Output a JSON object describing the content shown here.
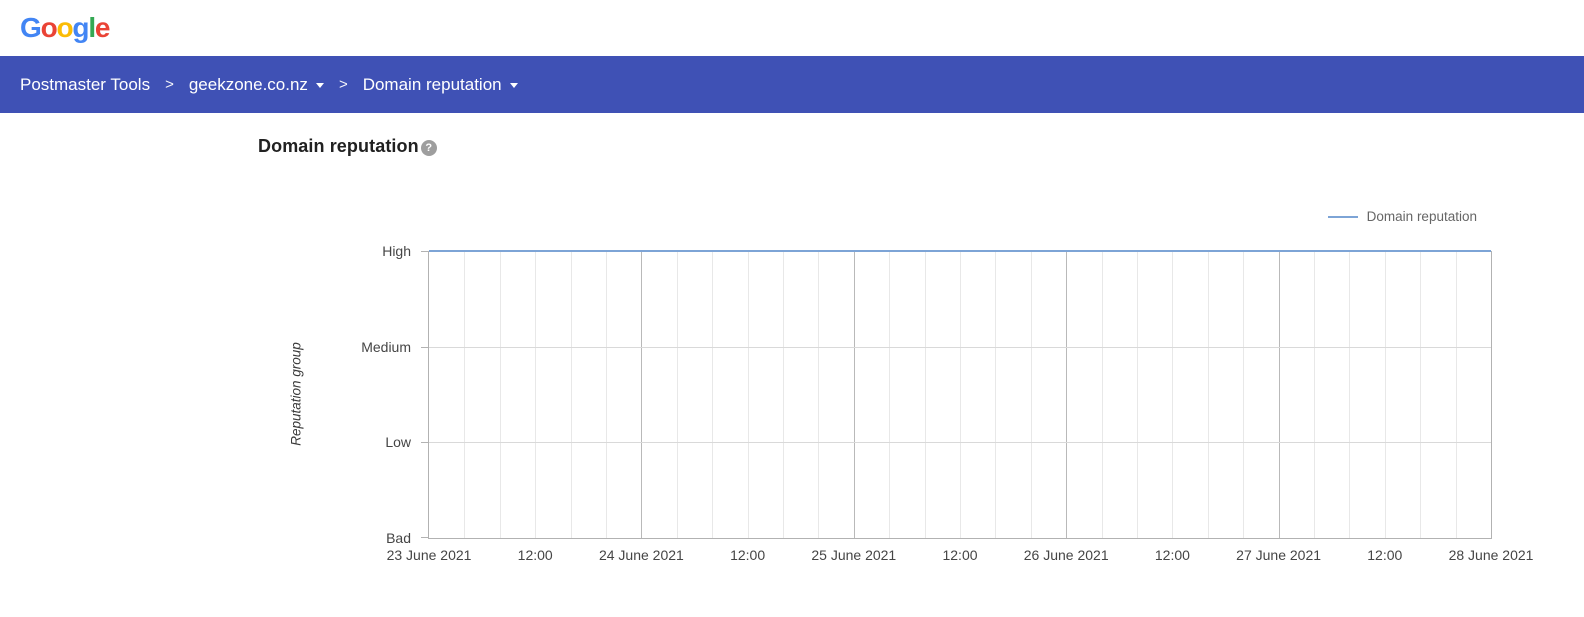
{
  "header": {
    "logo_letters": [
      {
        "ch": "G",
        "color": "#4285F4"
      },
      {
        "ch": "o",
        "color": "#EA4335"
      },
      {
        "ch": "o",
        "color": "#FBBC05"
      },
      {
        "ch": "g",
        "color": "#4285F4"
      },
      {
        "ch": "l",
        "color": "#34A853"
      },
      {
        "ch": "e",
        "color": "#EA4335"
      }
    ]
  },
  "navbar": {
    "separator": ">",
    "items": [
      {
        "label": "Postmaster Tools",
        "dropdown": false
      },
      {
        "label": "geekzone.co.nz",
        "dropdown": true
      },
      {
        "label": "Domain reputation",
        "dropdown": true
      }
    ]
  },
  "main": {
    "title": "Domain reputation",
    "help_icon_glyph": "?"
  },
  "legend": {
    "label": "Domain reputation"
  },
  "colors": {
    "navbar_bg": "#3f51b5",
    "series_blue": "#7da4d6",
    "grid_minor": "#e8e8e8",
    "grid_major": "#b9b9b9",
    "grid_horizontal": "#d9d9d9",
    "border": "#b2b2b2",
    "axis_text": "#454545",
    "legend_text": "#666666",
    "title_text": "#212121",
    "help_icon_bg": "#9e9e9e"
  },
  "chart_data": {
    "type": "line",
    "title": "Domain reputation",
    "xlabel": "",
    "ylabel": "Reputation group",
    "y_categories_top_to_bottom": [
      "High",
      "Medium",
      "Low",
      "Bad"
    ],
    "x_ticks": [
      "23 June 2021",
      "12:00",
      "24 June 2021",
      "12:00",
      "25 June 2021",
      "12:00",
      "26 June 2021",
      "12:00",
      "27 June 2021",
      "12:00",
      "28 June 2021"
    ],
    "x_range_days": 5,
    "minor_gridlines_per_day": 6,
    "grid": true,
    "legend_position": "top-right",
    "series": [
      {
        "name": "Domain reputation",
        "color": "#7da4d6",
        "x": [
          "23 June 2021 00:00",
          "28 June 2021 00:00"
        ],
        "values": [
          "High",
          "High"
        ],
        "note": "constant High across entire visible range"
      }
    ]
  }
}
